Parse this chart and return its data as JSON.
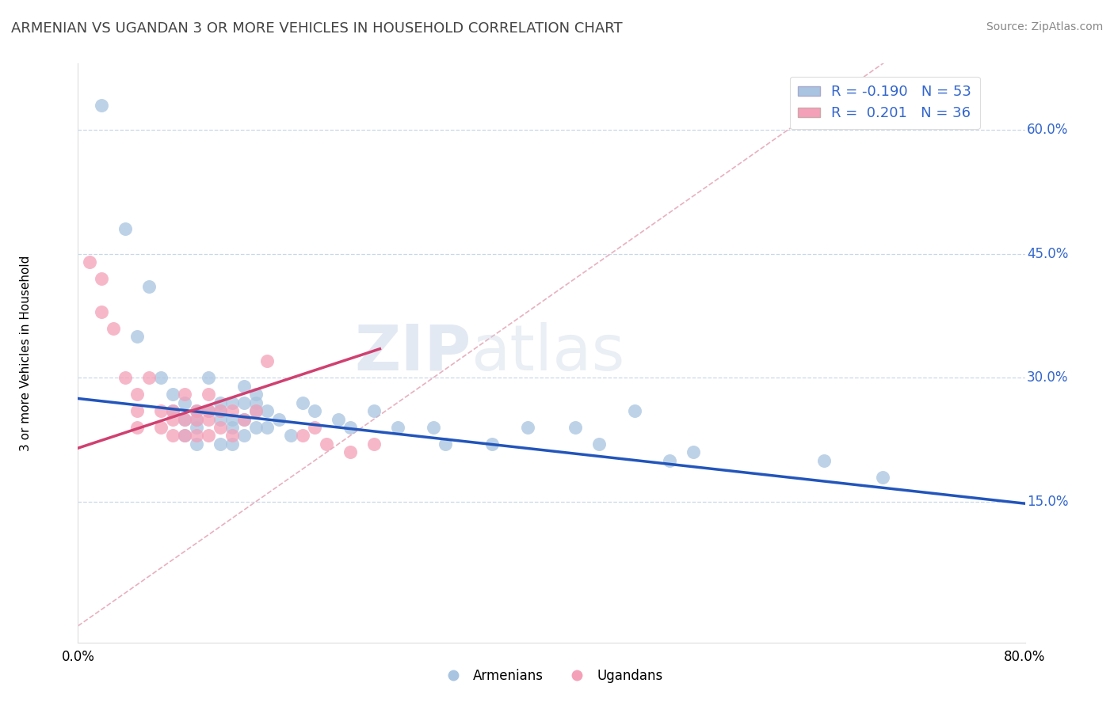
{
  "title": "ARMENIAN VS UGANDAN 3 OR MORE VEHICLES IN HOUSEHOLD CORRELATION CHART",
  "source": "Source: ZipAtlas.com",
  "ylabel": "3 or more Vehicles in Household",
  "ylabel_right_ticks": [
    "15.0%",
    "30.0%",
    "45.0%",
    "60.0%"
  ],
  "ylabel_right_positions": [
    0.15,
    0.3,
    0.45,
    0.6
  ],
  "xmin": 0.0,
  "xmax": 0.8,
  "ymin": -0.02,
  "ymax": 0.68,
  "watermark_zip": "ZIP",
  "watermark_atlas": "atlas",
  "legend_armenian_R": "-0.190",
  "legend_armenian_N": "53",
  "legend_ugandan_R": "0.201",
  "legend_ugandan_N": "36",
  "armenian_color": "#a8c4e0",
  "ugandan_color": "#f4a0b8",
  "armenian_line_color": "#2255bb",
  "ugandan_line_color": "#d04070",
  "diagonal_color": "#e8b0c0",
  "armenian_points_x": [
    0.02,
    0.04,
    0.05,
    0.06,
    0.07,
    0.08,
    0.08,
    0.09,
    0.09,
    0.09,
    0.1,
    0.1,
    0.1,
    0.1,
    0.11,
    0.11,
    0.12,
    0.12,
    0.12,
    0.12,
    0.13,
    0.13,
    0.13,
    0.13,
    0.14,
    0.14,
    0.14,
    0.14,
    0.15,
    0.15,
    0.15,
    0.15,
    0.16,
    0.16,
    0.17,
    0.18,
    0.19,
    0.2,
    0.22,
    0.23,
    0.25,
    0.27,
    0.3,
    0.31,
    0.35,
    0.38,
    0.42,
    0.44,
    0.47,
    0.5,
    0.52,
    0.63,
    0.68
  ],
  "armenian_points_y": [
    0.63,
    0.48,
    0.35,
    0.41,
    0.3,
    0.26,
    0.28,
    0.27,
    0.25,
    0.23,
    0.26,
    0.25,
    0.24,
    0.22,
    0.3,
    0.26,
    0.27,
    0.26,
    0.25,
    0.22,
    0.27,
    0.25,
    0.24,
    0.22,
    0.29,
    0.27,
    0.25,
    0.23,
    0.28,
    0.27,
    0.26,
    0.24,
    0.26,
    0.24,
    0.25,
    0.23,
    0.27,
    0.26,
    0.25,
    0.24,
    0.26,
    0.24,
    0.24,
    0.22,
    0.22,
    0.24,
    0.24,
    0.22,
    0.26,
    0.2,
    0.21,
    0.2,
    0.18
  ],
  "ugandan_points_x": [
    0.01,
    0.02,
    0.02,
    0.03,
    0.04,
    0.05,
    0.05,
    0.05,
    0.06,
    0.07,
    0.07,
    0.08,
    0.08,
    0.08,
    0.09,
    0.09,
    0.09,
    0.1,
    0.1,
    0.1,
    0.11,
    0.11,
    0.11,
    0.11,
    0.12,
    0.12,
    0.13,
    0.13,
    0.14,
    0.15,
    0.16,
    0.19,
    0.2,
    0.21,
    0.23,
    0.25
  ],
  "ugandan_points_y": [
    0.44,
    0.42,
    0.38,
    0.36,
    0.3,
    0.28,
    0.26,
    0.24,
    0.3,
    0.26,
    0.24,
    0.26,
    0.25,
    0.23,
    0.28,
    0.25,
    0.23,
    0.26,
    0.25,
    0.23,
    0.28,
    0.26,
    0.25,
    0.23,
    0.26,
    0.24,
    0.26,
    0.23,
    0.25,
    0.26,
    0.32,
    0.23,
    0.24,
    0.22,
    0.21,
    0.22
  ],
  "arm_line_x0": 0.0,
  "arm_line_x1": 0.8,
  "arm_line_y0": 0.275,
  "arm_line_y1": 0.148,
  "ug_line_x0": 0.0,
  "ug_line_x1": 0.255,
  "ug_line_y0": 0.215,
  "ug_line_y1": 0.335
}
